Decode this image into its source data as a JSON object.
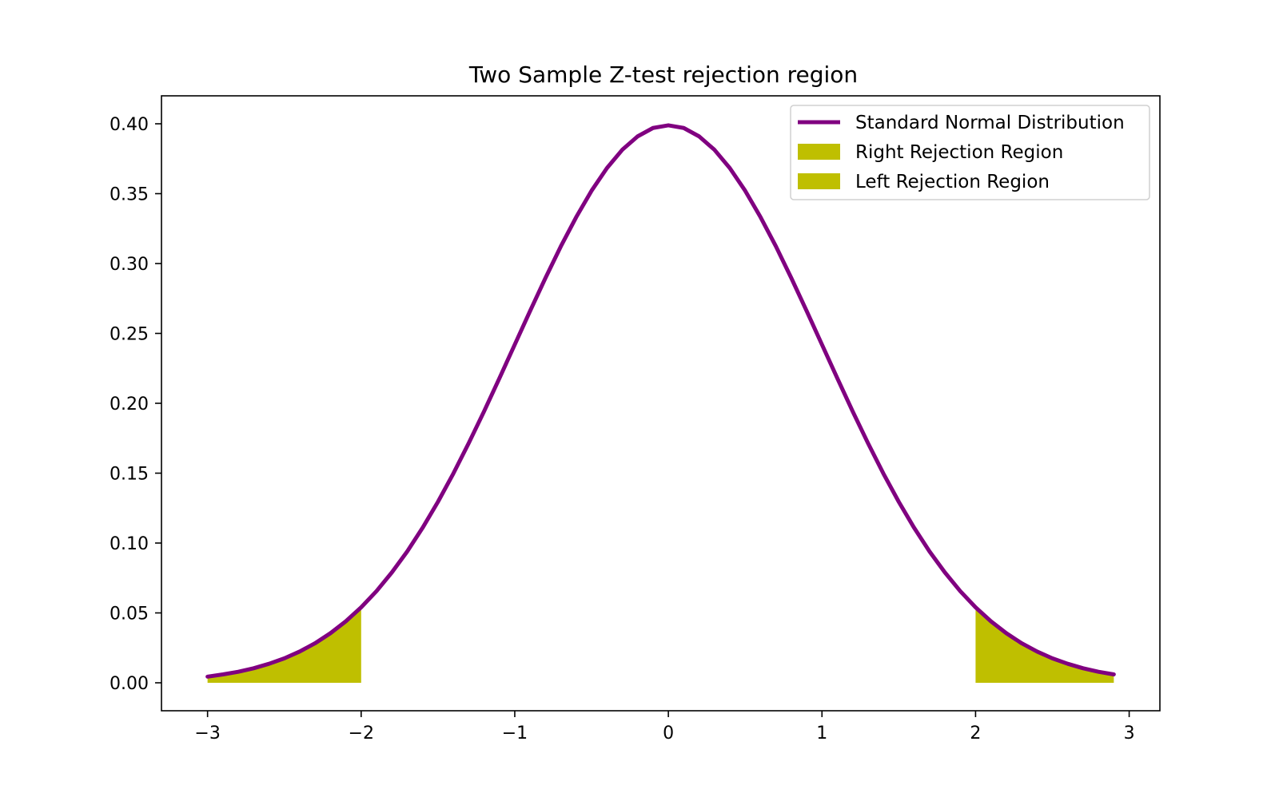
{
  "chart_data": {
    "type": "line",
    "title": "Two Sample Z-test rejection region",
    "xlabel": "",
    "ylabel": "",
    "xlim": [
      -3.3,
      3.2
    ],
    "ylim": [
      -0.02,
      0.42
    ],
    "xticks": [
      -3,
      -2,
      -1,
      0,
      1,
      2,
      3
    ],
    "xtick_labels": [
      "−3",
      "−2",
      "−1",
      "0",
      "1",
      "2",
      "3"
    ],
    "yticks": [
      0.0,
      0.05,
      0.1,
      0.15,
      0.2,
      0.25,
      0.3,
      0.35,
      0.4
    ],
    "ytick_labels": [
      "0.00",
      "0.05",
      "0.10",
      "0.15",
      "0.20",
      "0.25",
      "0.30",
      "0.35",
      "0.40"
    ],
    "grid": false,
    "legend_position": "top-right",
    "series": [
      {
        "name": "Standard Normal Distribution",
        "kind": "line",
        "color": "#800080",
        "x": [
          -3.0,
          -2.9,
          -2.8,
          -2.7,
          -2.6,
          -2.5,
          -2.4,
          -2.3,
          -2.2,
          -2.1,
          -2.0,
          -1.9,
          -1.8,
          -1.7,
          -1.6,
          -1.5,
          -1.4,
          -1.3,
          -1.2,
          -1.1,
          -1.0,
          -0.9,
          -0.8,
          -0.7,
          -0.6,
          -0.5,
          -0.4,
          -0.3,
          -0.2,
          -0.1,
          0.0,
          0.1,
          0.2,
          0.3,
          0.4,
          0.5,
          0.6,
          0.7,
          0.8,
          0.9,
          1.0,
          1.1,
          1.2,
          1.3,
          1.4,
          1.5,
          1.6,
          1.7,
          1.8,
          1.9,
          2.0,
          2.1,
          2.2,
          2.3,
          2.4,
          2.5,
          2.6,
          2.7,
          2.8,
          2.9
        ],
        "y": [
          0.0044,
          0.006,
          0.0079,
          0.0104,
          0.0136,
          0.0175,
          0.0224,
          0.0283,
          0.0355,
          0.044,
          0.054,
          0.0656,
          0.079,
          0.094,
          0.1109,
          0.1295,
          0.1497,
          0.1714,
          0.1942,
          0.2179,
          0.242,
          0.2661,
          0.2897,
          0.3123,
          0.3332,
          0.3521,
          0.3683,
          0.3814,
          0.391,
          0.397,
          0.3989,
          0.397,
          0.391,
          0.3814,
          0.3683,
          0.3521,
          0.3332,
          0.3123,
          0.2897,
          0.2661,
          0.242,
          0.2179,
          0.1942,
          0.1714,
          0.1497,
          0.1295,
          0.1109,
          0.094,
          0.079,
          0.0656,
          0.054,
          0.044,
          0.0355,
          0.0283,
          0.0224,
          0.0175,
          0.0136,
          0.0104,
          0.0079,
          0.006
        ]
      },
      {
        "name": "Right Rejection Region",
        "kind": "fill",
        "color": "#bfbf00",
        "x": [
          2.0,
          2.1,
          2.2,
          2.3,
          2.4,
          2.5,
          2.6,
          2.7,
          2.8,
          2.9
        ],
        "y": [
          0.054,
          0.044,
          0.0355,
          0.0283,
          0.0224,
          0.0175,
          0.0136,
          0.0104,
          0.0079,
          0.006
        ]
      },
      {
        "name": "Left Rejection Region",
        "kind": "fill",
        "color": "#bfbf00",
        "x": [
          -3.0,
          -2.9,
          -2.8,
          -2.7,
          -2.6,
          -2.5,
          -2.4,
          -2.3,
          -2.2,
          -2.1,
          -2.0
        ],
        "y": [
          0.0044,
          0.006,
          0.0079,
          0.0104,
          0.0136,
          0.0175,
          0.0224,
          0.0283,
          0.0355,
          0.044,
          0.054
        ]
      }
    ]
  }
}
